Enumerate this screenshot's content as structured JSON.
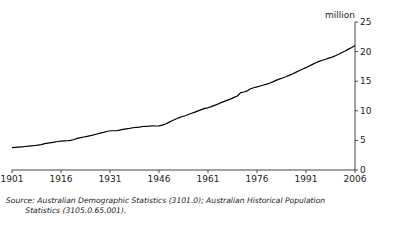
{
  "chart_data": {
    "type": "line",
    "ylabel": "million",
    "annotations": [
      "Source: Australian Demographic Statistics (3101.0); Australian Historical Population",
      "        Statistics (3105.0.65.001)."
    ],
    "color": "#000000",
    "xlim": [
      1901,
      2006
    ],
    "ylim": [
      0,
      25
    ],
    "xticks": [
      1901,
      1916,
      1931,
      1946,
      1961,
      1976,
      1991,
      2006
    ],
    "yticks": [
      0,
      5,
      10,
      15,
      20,
      25
    ],
    "x": [
      1901,
      1902,
      1903,
      1904,
      1905,
      1906,
      1907,
      1908,
      1909,
      1910,
      1911,
      1912,
      1913,
      1914,
      1915,
      1916,
      1917,
      1918,
      1919,
      1920,
      1921,
      1922,
      1923,
      1924,
      1925,
      1926,
      1927,
      1928,
      1929,
      1930,
      1931,
      1932,
      1933,
      1934,
      1935,
      1936,
      1937,
      1938,
      1939,
      1940,
      1941,
      1942,
      1943,
      1944,
      1945,
      1946,
      1947,
      1948,
      1949,
      1950,
      1951,
      1952,
      1953,
      1954,
      1955,
      1956,
      1957,
      1958,
      1959,
      1960,
      1961,
      1962,
      1963,
      1964,
      1965,
      1966,
      1967,
      1968,
      1969,
      1970,
      1971,
      1972,
      1973,
      1974,
      1975,
      1976,
      1977,
      1978,
      1979,
      1980,
      1981,
      1982,
      1983,
      1984,
      1985,
      1986,
      1987,
      1988,
      1989,
      1990,
      1991,
      1992,
      1993,
      1994,
      1995,
      1996,
      1997,
      1998,
      1999,
      2000,
      2001,
      2002,
      2003,
      2004,
      2005,
      2006
    ],
    "values": [
      3.788,
      3.826,
      3.874,
      3.921,
      3.967,
      4.017,
      4.075,
      4.142,
      4.217,
      4.296,
      4.455,
      4.544,
      4.634,
      4.72,
      4.811,
      4.867,
      4.921,
      4.937,
      4.999,
      5.157,
      5.336,
      5.455,
      5.57,
      5.68,
      5.793,
      5.936,
      6.08,
      6.218,
      6.349,
      6.501,
      6.63,
      6.63,
      6.63,
      6.75,
      6.848,
      6.945,
      7.022,
      7.136,
      7.2,
      7.256,
      7.35,
      7.374,
      7.404,
      7.474,
      7.433,
      7.462,
      7.579,
      7.769,
      8.047,
      8.307,
      8.571,
      8.816,
      8.987,
      9.157,
      9.378,
      9.589,
      9.786,
      9.989,
      10.196,
      10.408,
      10.508,
      10.7,
      10.908,
      11.122,
      11.388,
      11.599,
      11.8,
      12.009,
      12.263,
      12.507,
      13.067,
      13.177,
      13.365,
      13.724,
      13.893,
      14.033,
      14.192,
      14.362,
      14.516,
      14.695,
      14.923,
      15.184,
      15.394,
      15.579,
      15.788,
      16.018,
      16.264,
      16.532,
      16.814,
      17.065,
      17.284,
      17.563,
      17.843,
      18.114,
      18.355,
      18.532,
      18.699,
      18.886,
      19.071,
      19.309,
      19.557,
      19.844,
      20.112,
      20.415,
      20.697,
      21.017
    ]
  }
}
